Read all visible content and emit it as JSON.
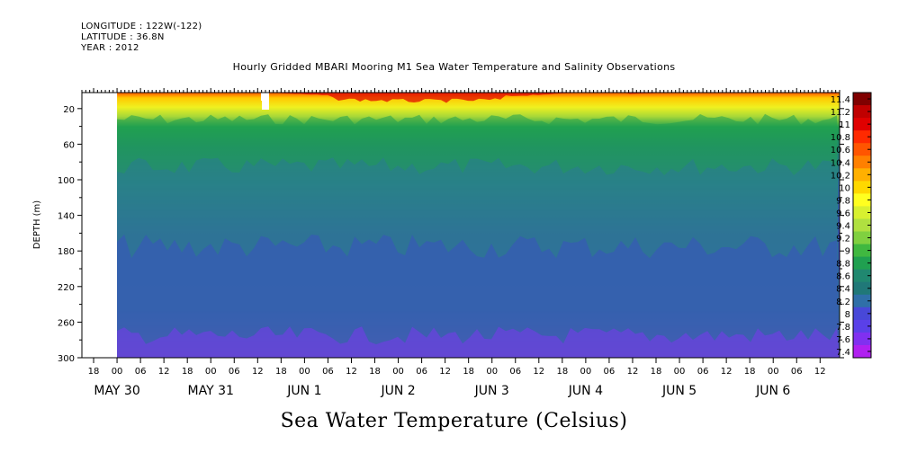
{
  "header": {
    "longitude": "LONGITUDE : 122W(-122)",
    "latitude": "LATITUDE : 36.8N",
    "year": "YEAR : 2012"
  },
  "chart_data": {
    "type": "heatmap",
    "title": "Hourly Gridded MBARI Mooring M1 Sea Water Temperature and Salinity Observations",
    "subtitle": "Sea Water Temperature (Celsius)",
    "ylabel": "DEPTH (m)",
    "y_ticks": [
      20,
      60,
      100,
      140,
      180,
      220,
      260,
      300
    ],
    "ylim": [
      300,
      2
    ],
    "x_hour_ticks": [
      "18",
      "00",
      "06",
      "12",
      "18",
      "00",
      "06",
      "12",
      "18",
      "00",
      "06",
      "12",
      "18",
      "00",
      "06",
      "12",
      "18",
      "00",
      "06",
      "12",
      "18",
      "00",
      "06",
      "12",
      "18",
      "00",
      "06",
      "12",
      "18",
      "00",
      "06",
      "12"
    ],
    "x_date_labels": [
      {
        "label": "MAY 30",
        "tick_index": 1
      },
      {
        "label": "MAY 31",
        "tick_index": 5
      },
      {
        "label": "JUN  1",
        "tick_index": 9
      },
      {
        "label": "JUN  2",
        "tick_index": 13
      },
      {
        "label": "JUN  3",
        "tick_index": 17
      },
      {
        "label": "JUN  4",
        "tick_index": 21
      },
      {
        "label": "JUN  5",
        "tick_index": 25
      },
      {
        "label": "JUN  6",
        "tick_index": 29
      }
    ],
    "time_range": [
      "2012-05-29 15:00",
      "2012-06-06 17:00"
    ],
    "data_start": "2012-05-30 00:00",
    "colorbar": {
      "labels": [
        "11.4",
        "11.2",
        "11",
        "10.8",
        "10.6",
        "10.4",
        "10.2",
        "10",
        "9.8",
        "9.6",
        "9.4",
        "9.2",
        "9",
        "8.8",
        "8.6",
        "8.4",
        "8.2",
        "8",
        "7.8",
        "7.6",
        "7.4"
      ],
      "colors": [
        "#800000",
        "#c00000",
        "#e00000",
        "#ff2a00",
        "#ff5500",
        "#ff8000",
        "#ffb000",
        "#ffd800",
        "#ffff20",
        "#d8f030",
        "#b0e040",
        "#80d040",
        "#40b840",
        "#20a050",
        "#208870",
        "#207878",
        "#2f6fa8",
        "#4848d8",
        "#5a40e8",
        "#8030f0",
        "#b020f0"
      ]
    },
    "temperature_profile": [
      {
        "depth": 2,
        "temp": 10.8
      },
      {
        "depth": 10,
        "temp": 10.2
      },
      {
        "depth": 20,
        "temp": 9.8
      },
      {
        "depth": 30,
        "temp": 9.3
      },
      {
        "depth": 40,
        "temp": 8.8
      },
      {
        "depth": 60,
        "temp": 8.5
      },
      {
        "depth": 100,
        "temp": 8.3
      },
      {
        "depth": 140,
        "temp": 8.1
      },
      {
        "depth": 180,
        "temp": 8.0
      },
      {
        "depth": 220,
        "temp": 7.9
      },
      {
        "depth": 260,
        "temp": 7.75
      },
      {
        "depth": 300,
        "temp": 7.5
      }
    ],
    "grid": false
  }
}
